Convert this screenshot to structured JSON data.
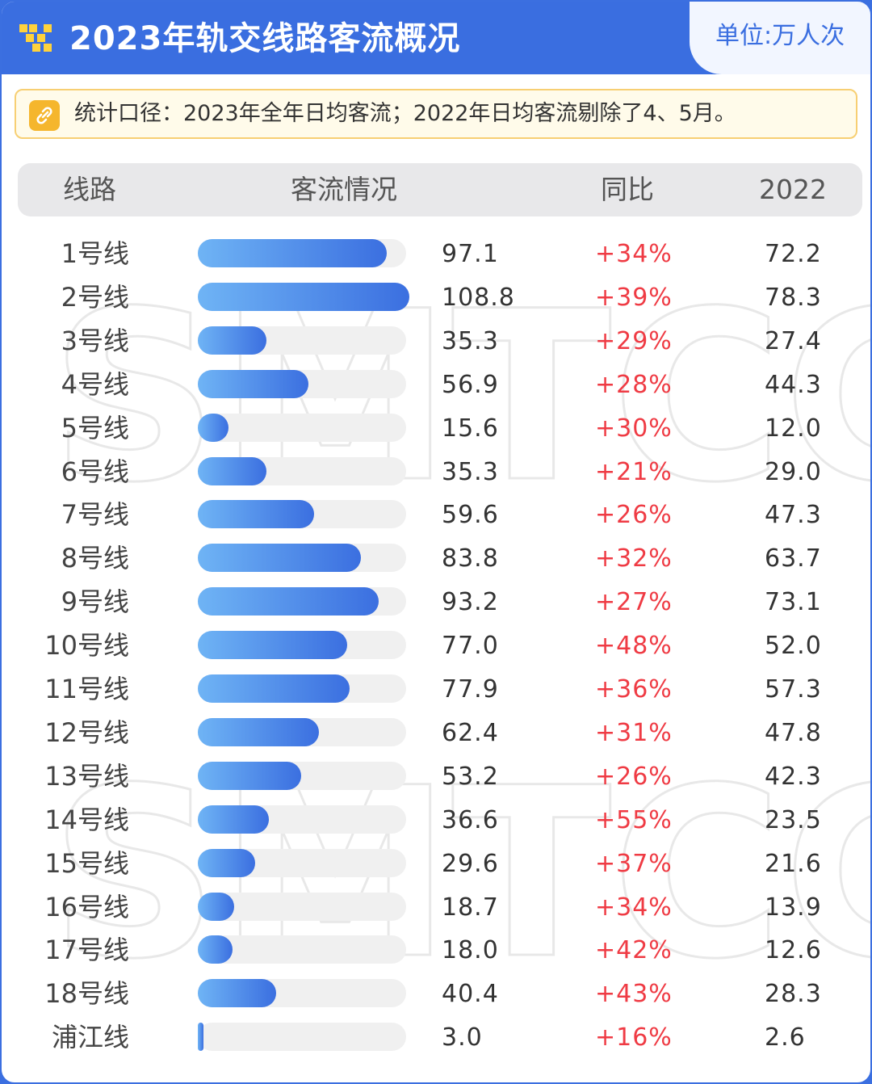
{
  "header": {
    "title": "2023年轨交线路客流概况",
    "unit": "单位:万人次"
  },
  "note": {
    "text": "统计口径：2023年全年日均客流；2022年日均客流剔除了4、5月。",
    "icon": "link-icon"
  },
  "table": {
    "headers": {
      "line": "线路",
      "flow": "客流情况",
      "yoy": "同比",
      "prev": "2022"
    }
  },
  "watermark": "SMTCC",
  "colors": {
    "header_bg": "#3a6ee0",
    "bar_start": "#6fb4f5",
    "bar_end": "#3b6fe0",
    "yoy_text": "#ef3b44",
    "note_border": "#f7cf73",
    "note_icon": "#f5b62d"
  },
  "chart_data": {
    "type": "bar",
    "orientation": "horizontal",
    "title": "2023年轨交线路客流概况",
    "unit": "单位:万人次",
    "xlim": [
      0,
      108.8
    ],
    "categories": [
      "1号线",
      "2号线",
      "3号线",
      "4号线",
      "5号线",
      "6号线",
      "7号线",
      "8号线",
      "9号线",
      "10号线",
      "11号线",
      "12号线",
      "13号线",
      "14号线",
      "15号线",
      "16号线",
      "17号线",
      "18号线",
      "浦江线"
    ],
    "values": [
      97.1,
      108.8,
      35.3,
      56.9,
      15.6,
      35.3,
      59.6,
      83.8,
      93.2,
      77.0,
      77.9,
      62.4,
      53.2,
      36.6,
      29.6,
      18.7,
      18.0,
      40.4,
      3.0
    ],
    "value_labels": [
      "97.1",
      "108.8",
      "35.3",
      "56.9",
      "15.6",
      "35.3",
      "59.6",
      "83.8",
      "93.2",
      "77.0",
      "77.9",
      "62.4",
      "53.2",
      "36.6",
      "29.6",
      "18.7",
      "18.0",
      "40.4",
      "3.0"
    ],
    "yoy": [
      "+34%",
      "+39%",
      "+29%",
      "+28%",
      "+30%",
      "+21%",
      "+26%",
      "+32%",
      "+27%",
      "+48%",
      "+36%",
      "+31%",
      "+26%",
      "+55%",
      "+37%",
      "+34%",
      "+42%",
      "+43%",
      "+16%"
    ],
    "prev_year": [
      "72.2",
      "78.3",
      "27.4",
      "44.3",
      "12.0",
      "29.0",
      "47.3",
      "63.7",
      "73.1",
      "52.0",
      "57.3",
      "47.8",
      "42.3",
      "23.5",
      "21.6",
      "13.9",
      "12.6",
      "28.3",
      "2.6"
    ]
  }
}
